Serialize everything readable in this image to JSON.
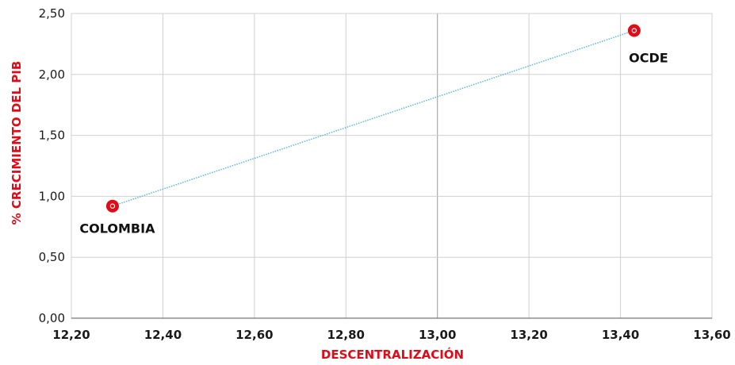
{
  "chart_data": {
    "type": "scatter",
    "title": "",
    "xlabel": "DESCENTRALIZACIÓN",
    "ylabel": "% CRECIMIENTO DEL PIB",
    "xlim": [
      12.2,
      13.6
    ],
    "ylim": [
      0,
      2.5
    ],
    "x_ticks": [
      12.2,
      12.4,
      12.6,
      12.8,
      13.0,
      13.2,
      13.4,
      13.6
    ],
    "y_ticks": [
      0,
      0.5,
      1.0,
      1.5,
      2.0,
      2.5
    ],
    "x_tick_labels": [
      "12,20",
      "12,40",
      "12,60",
      "12,80",
      "13,00",
      "13,20",
      "13,40",
      "13,60"
    ],
    "y_tick_labels": [
      "0,00",
      "0,50",
      "1,00",
      "1,50",
      "2,00",
      "2,50"
    ],
    "grid": true,
    "highlighted_gridline_x": 13.0,
    "points": [
      {
        "label": "COLOMBIA",
        "x": 12.29,
        "y": 0.92
      },
      {
        "label": "OCDE",
        "x": 13.43,
        "y": 2.36
      }
    ],
    "connector": "dotted-line",
    "colors": {
      "marker": "#e10b17",
      "connector": "#5bb8d6",
      "axis_title": "#e10b17",
      "grid": "#d0d0d0",
      "highlighted_grid": "#9a9a9a"
    }
  }
}
